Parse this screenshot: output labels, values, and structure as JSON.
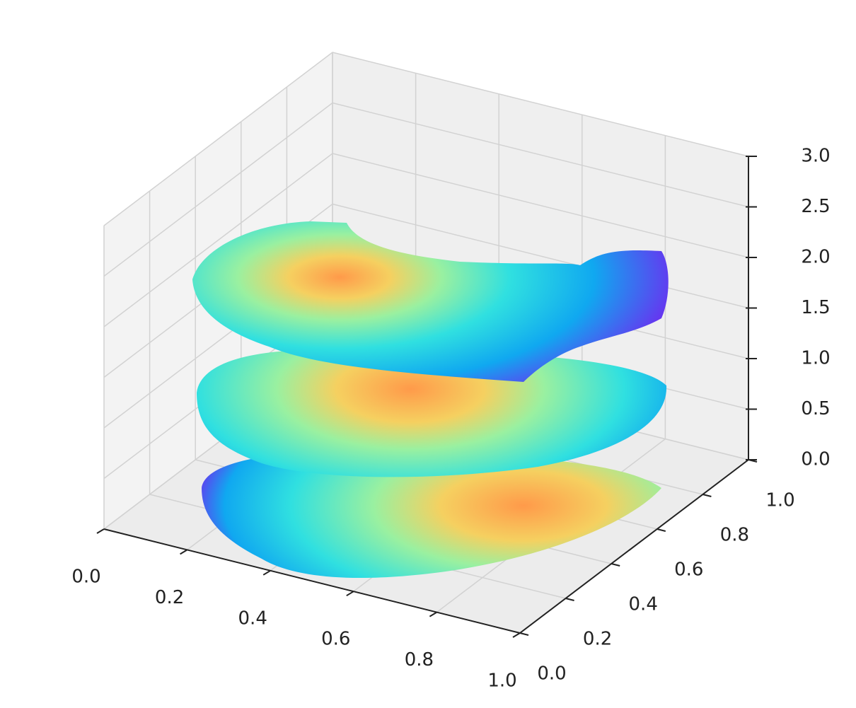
{
  "chart_data": {
    "type": "surface3d",
    "xlim": [
      0,
      1
    ],
    "ylim": [
      0,
      1
    ],
    "zlim": [
      0,
      3
    ],
    "xticks": [
      {
        "value": 0,
        "label": "0.0"
      },
      0.2,
      0.4,
      0.6,
      0.8,
      {
        "value": 1,
        "label": "1.0"
      }
    ],
    "yticks": [
      {
        "value": 0,
        "label": "0.0"
      },
      0.2,
      0.4,
      0.6,
      0.8,
      {
        "value": 1,
        "label": "1.0"
      }
    ],
    "zticks": [
      {
        "value": 0,
        "label": "0.0"
      },
      0.5,
      {
        "value": 1,
        "label": "1.0"
      },
      1.5,
      {
        "value": 2,
        "label": "2.0"
      },
      2.5,
      {
        "value": 3,
        "label": "3.0"
      }
    ],
    "grid": true
  }
}
